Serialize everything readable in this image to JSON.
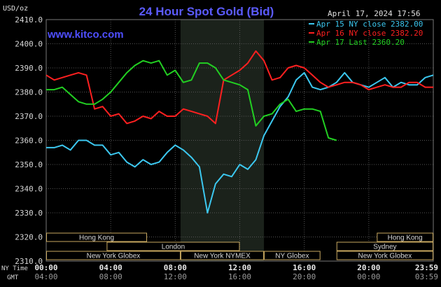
{
  "title": "24 Hour Spot Gold (Bid)",
  "site": "www.kitco.com",
  "timestamp": "April 17, 2024 17:56",
  "unit_label": "USD/oz",
  "time_labels": {
    "ny_label": "NY Time",
    "gmt_label": "GMT",
    "ny": [
      "00:00",
      "04:00",
      "08:00",
      "12:00",
      "16:00",
      "20:00",
      "23:59"
    ],
    "gmt": [
      "04:00",
      "08:00",
      "12:00",
      "16:00",
      "20:00",
      "00:00",
      "03:59"
    ]
  },
  "markets": [
    {
      "label": "Hong Kong"
    },
    {
      "label": "London"
    },
    {
      "label": "New York Globex"
    },
    {
      "label": "New York NYMEX"
    },
    {
      "label": "NY Globex"
    },
    {
      "label": "Hong Kong"
    },
    {
      "label": "Sydney"
    },
    {
      "label": "New York Globex"
    }
  ],
  "colors": {
    "background": "#000000",
    "plot_bg": "#000000",
    "grid": "#555555",
    "nymex_shade": "#1b221b",
    "title": "#5b5bff",
    "site": "#4f4fff",
    "axis_text": "#d8d8d8",
    "market_border": "#c8a860",
    "market_text": "#d8d8d8"
  },
  "chart_data": {
    "type": "line",
    "title": "24 Hour Spot Gold (Bid)",
    "xlabel": "NY Time",
    "ylabel": "USD/oz",
    "ylim": [
      2310,
      2410
    ],
    "xlim": [
      0,
      24
    ],
    "yticks": [
      "2310.0",
      "2320.0",
      "2330.0",
      "2340.0",
      "2350.0",
      "2360.0",
      "2370.0",
      "2380.0",
      "2390.0",
      "2400.0",
      "2410.0"
    ],
    "grid": true,
    "legend_position": "top-right",
    "series": [
      {
        "name": "Apr 15 NY close 2382.00",
        "color": "#3cc8f0",
        "x": [
          0,
          0.5,
          1,
          1.5,
          2,
          2.5,
          3,
          3.5,
          4,
          4.5,
          5,
          5.5,
          6,
          6.5,
          7,
          7.5,
          8,
          8.5,
          9,
          9.5,
          10,
          10.5,
          11,
          11.5,
          12,
          12.5,
          13,
          13.5,
          14,
          14.5,
          15,
          15.5,
          16,
          16.5,
          17,
          17.5,
          18,
          18.5,
          19,
          19.5,
          20,
          20.5,
          21,
          21.5,
          22,
          22.5,
          23,
          23.5,
          24
        ],
        "y": [
          2357,
          2357,
          2358,
          2356,
          2360,
          2360,
          2358,
          2358,
          2354,
          2355,
          2351,
          2349,
          2352,
          2350,
          2351,
          2355,
          2358,
          2356,
          2353,
          2349,
          2330,
          2342,
          2346,
          2345,
          2350,
          2348,
          2352,
          2362,
          2368,
          2374,
          2378,
          2385,
          2388,
          2382,
          2381,
          2382,
          2384,
          2388,
          2384,
          2383,
          2382,
          2384,
          2386,
          2382,
          2384,
          2383,
          2383,
          2386,
          2387
        ]
      },
      {
        "name": "Apr 16 NY close 2382.20",
        "color": "#ff2020",
        "x": [
          0,
          0.5,
          1,
          1.5,
          2,
          2.5,
          3,
          3.5,
          4,
          4.5,
          5,
          5.5,
          6,
          6.5,
          7,
          7.5,
          8,
          8.5,
          9,
          9.5,
          10,
          10.5,
          11,
          11.5,
          12,
          12.5,
          13,
          13.5,
          14,
          14.5,
          15,
          15.5,
          16,
          16.5,
          17,
          17.5,
          18,
          18.5,
          19,
          19.5,
          20,
          20.5,
          21,
          21.5,
          22,
          22.5,
          23,
          23.5,
          24
        ],
        "y": [
          2387,
          2385,
          2386,
          2387,
          2388,
          2387,
          2373,
          2374,
          2370,
          2371,
          2367,
          2368,
          2370,
          2369,
          2372,
          2370,
          2370,
          2373,
          2372,
          2371,
          2370,
          2367,
          2385,
          2387,
          2389,
          2392,
          2397,
          2393,
          2385,
          2386,
          2390,
          2391,
          2390,
          2387,
          2384,
          2382,
          2383,
          2384,
          2384,
          2383,
          2381,
          2382,
          2383,
          2382,
          2382,
          2384,
          2384,
          2382,
          2382
        ]
      },
      {
        "name": "Apr 17 Last 2360.20",
        "color": "#22d022",
        "x": [
          0,
          0.5,
          1,
          1.5,
          2,
          2.5,
          3,
          3.5,
          4,
          4.5,
          5,
          5.5,
          6,
          6.5,
          7,
          7.5,
          8,
          8.5,
          9,
          9.5,
          10,
          10.5,
          11,
          11.5,
          12,
          12.5,
          13,
          13.5,
          14,
          14.5,
          15,
          15.5,
          16,
          16.5,
          17,
          17.5,
          18
        ],
        "y": [
          2381,
          2381,
          2382,
          2379,
          2376,
          2375,
          2375,
          2377,
          2380,
          2384,
          2388,
          2391,
          2393,
          2392,
          2393,
          2387,
          2389,
          2384,
          2385,
          2392,
          2392,
          2390,
          2385,
          2384,
          2383,
          2381,
          2366,
          2370,
          2371,
          2375,
          2377,
          2372,
          2373,
          2373,
          2372,
          2361,
          2360
        ]
      }
    ]
  }
}
